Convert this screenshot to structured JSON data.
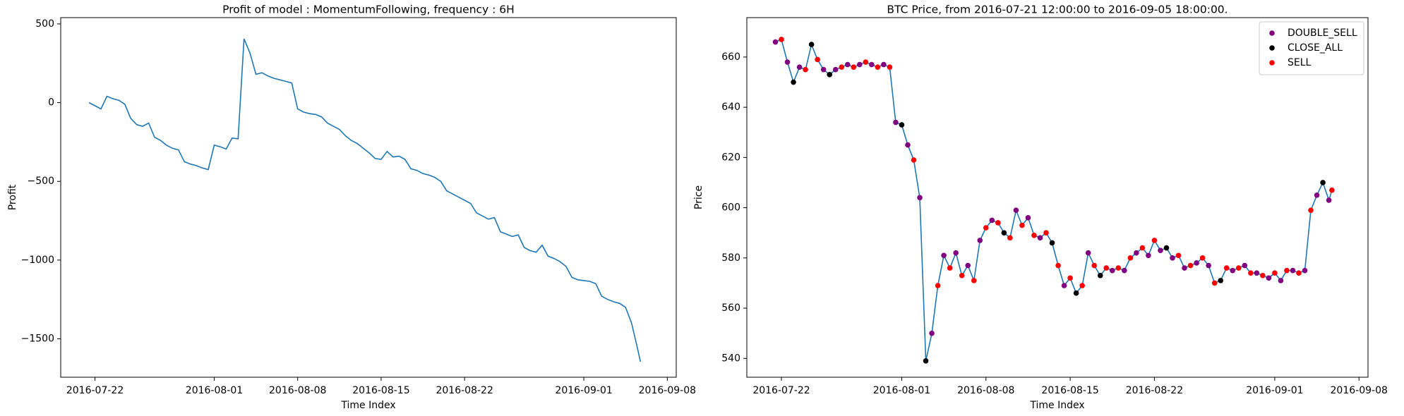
{
  "chart_data": [
    {
      "type": "line",
      "title": "Profit of model : MomentumFollowing, frequency : 6H",
      "x_label": "Time Index",
      "y_label": "Profit",
      "color": "#1f77b4",
      "x": [
        "2016-07-21 12:00",
        "2016-07-22 00:00",
        "2016-07-22 12:00",
        "2016-07-23 00:00",
        "2016-07-23 12:00",
        "2016-07-24 00:00",
        "2016-07-24 12:00",
        "2016-07-25 00:00",
        "2016-07-25 12:00",
        "2016-07-26 00:00",
        "2016-07-26 12:00",
        "2016-07-27 00:00",
        "2016-07-27 12:00",
        "2016-07-28 00:00",
        "2016-07-28 12:00",
        "2016-07-29 00:00",
        "2016-07-29 12:00",
        "2016-07-30 00:00",
        "2016-07-30 12:00",
        "2016-07-31 00:00",
        "2016-07-31 12:00",
        "2016-08-01 00:00",
        "2016-08-01 12:00",
        "2016-08-02 00:00",
        "2016-08-02 12:00",
        "2016-08-03 00:00",
        "2016-08-03 12:00",
        "2016-08-04 00:00",
        "2016-08-04 12:00",
        "2016-08-05 00:00",
        "2016-08-05 12:00",
        "2016-08-06 00:00",
        "2016-08-06 12:00",
        "2016-08-07 00:00",
        "2016-08-07 12:00",
        "2016-08-08 00:00",
        "2016-08-08 12:00",
        "2016-08-09 00:00",
        "2016-08-09 12:00",
        "2016-08-10 00:00",
        "2016-08-10 12:00",
        "2016-08-11 00:00",
        "2016-08-11 12:00",
        "2016-08-12 00:00",
        "2016-08-12 12:00",
        "2016-08-13 00:00",
        "2016-08-13 12:00",
        "2016-08-14 00:00",
        "2016-08-14 12:00",
        "2016-08-15 00:00",
        "2016-08-15 12:00",
        "2016-08-16 00:00",
        "2016-08-16 12:00",
        "2016-08-17 00:00",
        "2016-08-17 12:00",
        "2016-08-18 00:00",
        "2016-08-18 12:00",
        "2016-08-19 00:00",
        "2016-08-19 12:00",
        "2016-08-20 00:00",
        "2016-08-20 12:00",
        "2016-08-21 00:00",
        "2016-08-21 12:00",
        "2016-08-22 00:00",
        "2016-08-22 12:00",
        "2016-08-23 00:00",
        "2016-08-23 12:00",
        "2016-08-24 00:00",
        "2016-08-24 12:00",
        "2016-08-25 00:00",
        "2016-08-25 12:00",
        "2016-08-26 00:00",
        "2016-08-26 12:00",
        "2016-08-27 00:00",
        "2016-08-27 12:00",
        "2016-08-28 00:00",
        "2016-08-28 12:00",
        "2016-08-29 00:00",
        "2016-08-29 12:00",
        "2016-08-30 00:00",
        "2016-08-30 12:00",
        "2016-08-31 00:00",
        "2016-08-31 12:00",
        "2016-09-01 00:00",
        "2016-09-01 12:00",
        "2016-09-02 00:00",
        "2016-09-02 12:00",
        "2016-09-03 00:00",
        "2016-09-03 12:00",
        "2016-09-04 00:00",
        "2016-09-04 12:00",
        "2016-09-05 00:00",
        "2016-09-05 12:00",
        "2016-09-05 18:00"
      ],
      "values": [
        0,
        -20,
        -40,
        40,
        25,
        15,
        -10,
        -100,
        -140,
        -150,
        -130,
        -220,
        -240,
        -270,
        -290,
        -300,
        -375,
        -390,
        -400,
        -415,
        -425,
        -270,
        -280,
        -295,
        -225,
        -230,
        405,
        315,
        180,
        190,
        170,
        155,
        145,
        135,
        125,
        -40,
        -60,
        -70,
        -75,
        -90,
        -130,
        -150,
        -170,
        -210,
        -240,
        -260,
        -290,
        -320,
        -355,
        -360,
        -310,
        -345,
        -340,
        -360,
        -420,
        -430,
        -450,
        -460,
        -475,
        -500,
        -560,
        -580,
        -600,
        -620,
        -640,
        -700,
        -720,
        -740,
        -730,
        -820,
        -835,
        -850,
        -840,
        -920,
        -940,
        -950,
        -905,
        -975,
        -990,
        -1010,
        -1040,
        -1110,
        -1125,
        -1130,
        -1135,
        -1150,
        -1230,
        -1250,
        -1265,
        -1275,
        -1300,
        -1400,
        -1560,
        -1645
      ],
      "xlim": [
        "2016-07-19 03:00",
        "2016-09-08 18:00"
      ],
      "xticks": [
        "2016-07-22",
        "2016-08-01",
        "2016-08-08",
        "2016-08-15",
        "2016-08-22",
        "2016-09-01",
        "2016-09-08"
      ],
      "ylim": [
        -1744,
        540
      ],
      "yticks": [
        {
          "value": -1500,
          "label": "−1500"
        },
        {
          "value": -1000,
          "label": "−1000"
        },
        {
          "value": -500,
          "label": "−500"
        },
        0,
        500
      ],
      "grid": false
    },
    {
      "type": "line",
      "title": "BTC Price, from 2016-07-21 12:00:00 to 2016-09-05 18:00:00.",
      "x_label": "Time Index",
      "y_label": "Price",
      "color": "#1f77b4",
      "x": [
        "2016-07-21 12:00",
        "2016-07-22 00:00",
        "2016-07-22 12:00",
        "2016-07-23 00:00",
        "2016-07-23 12:00",
        "2016-07-24 00:00",
        "2016-07-24 12:00",
        "2016-07-25 00:00",
        "2016-07-25 12:00",
        "2016-07-26 00:00",
        "2016-07-26 12:00",
        "2016-07-27 00:00",
        "2016-07-27 12:00",
        "2016-07-28 00:00",
        "2016-07-28 12:00",
        "2016-07-29 00:00",
        "2016-07-29 12:00",
        "2016-07-30 00:00",
        "2016-07-30 12:00",
        "2016-07-31 00:00",
        "2016-07-31 12:00",
        "2016-08-01 00:00",
        "2016-08-01 12:00",
        "2016-08-02 00:00",
        "2016-08-02 12:00",
        "2016-08-03 00:00",
        "2016-08-03 12:00",
        "2016-08-04 00:00",
        "2016-08-04 12:00",
        "2016-08-05 00:00",
        "2016-08-05 12:00",
        "2016-08-06 00:00",
        "2016-08-06 12:00",
        "2016-08-07 00:00",
        "2016-08-07 12:00",
        "2016-08-08 00:00",
        "2016-08-08 12:00",
        "2016-08-09 00:00",
        "2016-08-09 12:00",
        "2016-08-10 00:00",
        "2016-08-10 12:00",
        "2016-08-11 00:00",
        "2016-08-11 12:00",
        "2016-08-12 00:00",
        "2016-08-12 12:00",
        "2016-08-13 00:00",
        "2016-08-13 12:00",
        "2016-08-14 00:00",
        "2016-08-14 12:00",
        "2016-08-15 00:00",
        "2016-08-15 12:00",
        "2016-08-16 00:00",
        "2016-08-16 12:00",
        "2016-08-17 00:00",
        "2016-08-17 12:00",
        "2016-08-18 00:00",
        "2016-08-18 12:00",
        "2016-08-19 00:00",
        "2016-08-19 12:00",
        "2016-08-20 00:00",
        "2016-08-20 12:00",
        "2016-08-21 00:00",
        "2016-08-21 12:00",
        "2016-08-22 00:00",
        "2016-08-22 12:00",
        "2016-08-23 00:00",
        "2016-08-23 12:00",
        "2016-08-24 00:00",
        "2016-08-24 12:00",
        "2016-08-25 00:00",
        "2016-08-25 12:00",
        "2016-08-26 00:00",
        "2016-08-26 12:00",
        "2016-08-27 00:00",
        "2016-08-27 12:00",
        "2016-08-28 00:00",
        "2016-08-28 12:00",
        "2016-08-29 00:00",
        "2016-08-29 12:00",
        "2016-08-30 00:00",
        "2016-08-30 12:00",
        "2016-08-31 00:00",
        "2016-08-31 12:00",
        "2016-09-01 00:00",
        "2016-09-01 12:00",
        "2016-09-02 00:00",
        "2016-09-02 12:00",
        "2016-09-03 00:00",
        "2016-09-03 12:00",
        "2016-09-04 00:00",
        "2016-09-04 12:00",
        "2016-09-05 00:00",
        "2016-09-05 12:00",
        "2016-09-05 18:00"
      ],
      "values": [
        666,
        667,
        658,
        650,
        656,
        655,
        665,
        659,
        655,
        653,
        655,
        656,
        657,
        656,
        657,
        658,
        657,
        656,
        657,
        656,
        634,
        633,
        625,
        619,
        604,
        539,
        550,
        569,
        581,
        576,
        582,
        573,
        577,
        571,
        587,
        592,
        595,
        594,
        590,
        588,
        599,
        593,
        596,
        589,
        588,
        590,
        586,
        577,
        569,
        572,
        566,
        569,
        582,
        577,
        573,
        576,
        575,
        576,
        575,
        580,
        582,
        584,
        581,
        587,
        583,
        584,
        580,
        581,
        576,
        577,
        578,
        580,
        577,
        570,
        571,
        576,
        575,
        576,
        577,
        574,
        574,
        573,
        572,
        574,
        571,
        575,
        575,
        574,
        575,
        599,
        605,
        610,
        603,
        607
      ],
      "scatter": [
        {
          "name": "DOUBLE_SELL",
          "color": "#800080",
          "x": [
            "2016-07-21 12:00",
            "2016-07-22 12:00",
            "2016-07-23 12:00",
            "2016-07-25 12:00",
            "2016-07-26 12:00",
            "2016-07-27 12:00",
            "2016-07-28 12:00",
            "2016-07-29 12:00",
            "2016-07-30 12:00",
            "2016-07-31 12:00",
            "2016-08-01 12:00",
            "2016-08-02 12:00",
            "2016-08-03 12:00",
            "2016-08-04 12:00",
            "2016-08-05 12:00",
            "2016-08-06 12:00",
            "2016-08-07 12:00",
            "2016-08-08 12:00",
            "2016-08-10 12:00",
            "2016-08-11 12:00",
            "2016-08-12 12:00",
            "2016-08-14 12:00",
            "2016-08-16 12:00",
            "2016-08-18 12:00",
            "2016-08-19 12:00",
            "2016-08-20 12:00",
            "2016-08-21 12:00",
            "2016-08-22 12:00",
            "2016-08-23 12:00",
            "2016-08-24 12:00",
            "2016-08-25 12:00",
            "2016-08-26 12:00",
            "2016-08-28 12:00",
            "2016-08-29 12:00",
            "2016-08-30 12:00",
            "2016-08-31 12:00",
            "2016-09-01 12:00",
            "2016-09-02 12:00",
            "2016-09-03 12:00",
            "2016-09-04 12:00",
            "2016-09-05 12:00"
          ],
          "values": [
            666,
            658,
            656,
            655,
            655,
            657,
            657,
            657,
            657,
            634,
            625,
            604,
            550,
            581,
            582,
            577,
            587,
            595,
            599,
            596,
            588,
            569,
            582,
            575,
            575,
            582,
            581,
            583,
            580,
            576,
            578,
            577,
            575,
            577,
            574,
            572,
            571,
            575,
            575,
            605,
            603
          ]
        },
        {
          "name": "CLOSE_ALL",
          "color": "#000000",
          "x": [
            "2016-07-23 00:00",
            "2016-07-24 12:00",
            "2016-07-26 00:00",
            "2016-08-01 00:00",
            "2016-08-03 00:00",
            "2016-08-09 12:00",
            "2016-08-13 12:00",
            "2016-08-15 12:00",
            "2016-08-17 12:00",
            "2016-08-23 00:00",
            "2016-08-27 12:00",
            "2016-09-05 00:00"
          ],
          "values": [
            650,
            665,
            653,
            633,
            539,
            590,
            586,
            566,
            573,
            584,
            571,
            610
          ]
        },
        {
          "name": "SELL",
          "color": "#ff0000",
          "x": [
            "2016-07-22 00:00",
            "2016-07-24 00:00",
            "2016-07-25 00:00",
            "2016-07-27 00:00",
            "2016-07-28 00:00",
            "2016-07-29 00:00",
            "2016-07-30 00:00",
            "2016-07-31 00:00",
            "2016-08-02 00:00",
            "2016-08-04 00:00",
            "2016-08-05 00:00",
            "2016-08-06 00:00",
            "2016-08-07 00:00",
            "2016-08-08 00:00",
            "2016-08-09 00:00",
            "2016-08-10 00:00",
            "2016-08-11 00:00",
            "2016-08-12 00:00",
            "2016-08-13 00:00",
            "2016-08-14 00:00",
            "2016-08-15 00:00",
            "2016-08-16 00:00",
            "2016-08-17 00:00",
            "2016-08-18 00:00",
            "2016-08-19 00:00",
            "2016-08-20 00:00",
            "2016-08-21 00:00",
            "2016-08-22 00:00",
            "2016-08-24 00:00",
            "2016-08-25 00:00",
            "2016-08-26 00:00",
            "2016-08-27 00:00",
            "2016-08-28 00:00",
            "2016-08-29 00:00",
            "2016-08-30 00:00",
            "2016-08-31 00:00",
            "2016-09-01 00:00",
            "2016-09-02 00:00",
            "2016-09-03 00:00",
            "2016-09-04 00:00",
            "2016-09-05 18:00"
          ],
          "values": [
            667,
            655,
            659,
            656,
            656,
            658,
            656,
            656,
            619,
            569,
            576,
            573,
            571,
            592,
            594,
            588,
            593,
            589,
            590,
            577,
            572,
            569,
            577,
            576,
            576,
            580,
            584,
            587,
            581,
            577,
            580,
            570,
            576,
            576,
            574,
            573,
            574,
            575,
            574,
            599,
            607
          ]
        }
      ],
      "legend": "upper right",
      "xlim": [
        "2016-07-19 03:00",
        "2016-09-08 18:00"
      ],
      "xticks": [
        "2016-07-22",
        "2016-08-01",
        "2016-08-08",
        "2016-08-15",
        "2016-08-22",
        "2016-09-01",
        "2016-09-08"
      ],
      "ylim": [
        532.5,
        675.7
      ],
      "yticks": [
        540,
        560,
        580,
        600,
        620,
        640,
        660
      ],
      "grid": false
    }
  ]
}
